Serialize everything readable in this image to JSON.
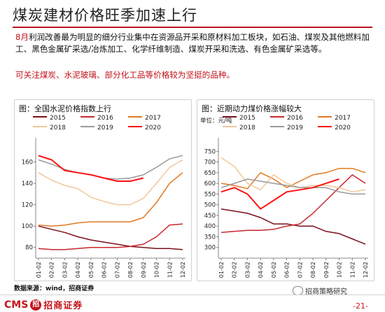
{
  "page": {
    "title": "煤炭建材价格旺季加速上行",
    "para1_red": "8月",
    "para1_rest": "利润改善最为明显的细分行业集中在资源品开采和原材料加工板块，如石油、煤炭及其他燃料加工、黑色金属矿采选/冶炼加工、化学纤维制造、煤炭开采和洗选、有色金属矿采选等。",
    "para2": "可关注煤炭、水泥玻璃、部分化工品等价格较为坚挺的品种。",
    "source": "数据来源：wind，招商证券",
    "logo_latin": "CMS",
    "logo_mark": "招",
    "logo_cn": "招商证券",
    "wechat": "招商策略研究",
    "page_number": "-21-"
  },
  "colors": {
    "2015": "#7a0f1a",
    "2016": "#c8262d",
    "2017": "#e07a21",
    "2018": "#f0c89a",
    "2019": "#9a9a9a",
    "2020": "#ff1111",
    "accent": "#b8191f"
  },
  "chart_data": [
    {
      "type": "line",
      "title": "图：全国水泥价格指数上行",
      "x": [
        "01-02",
        "02-02",
        "03-02",
        "04-02",
        "05-02",
        "06-02",
        "07-02",
        "08-02",
        "09-02",
        "10-02",
        "11-02",
        "12-02"
      ],
      "ylim": [
        70,
        180
      ],
      "yticks": [
        80,
        100,
        120,
        140,
        160
      ],
      "legend": "top",
      "series": [
        {
          "name": "2015",
          "color_key": "2015",
          "values": [
            100,
            97,
            94,
            90,
            87,
            85,
            83,
            81,
            80,
            79,
            79,
            78
          ]
        },
        {
          "name": "2016",
          "color_key": "2016",
          "values": [
            79,
            78,
            78,
            79,
            80,
            80,
            80,
            81,
            83,
            90,
            101,
            102
          ]
        },
        {
          "name": "2017",
          "color_key": "2017",
          "values": [
            101,
            100,
            101,
            103,
            104,
            104,
            104,
            104,
            108,
            122,
            140,
            150
          ]
        },
        {
          "name": "2018",
          "color_key": "2018",
          "values": [
            150,
            143,
            138,
            135,
            127,
            123,
            120,
            120,
            126,
            140,
            155,
            162
          ]
        },
        {
          "name": "2019",
          "color_key": "2019",
          "values": [
            162,
            158,
            153,
            150,
            148,
            145,
            144,
            145,
            148,
            155,
            163,
            166
          ]
        },
        {
          "name": "2020",
          "color_key": "2020",
          "values": [
            166,
            162,
            152,
            150,
            148,
            145,
            142,
            142,
            145,
            null,
            null,
            null
          ]
        }
      ]
    },
    {
      "type": "line",
      "title": "图：近期动力煤价格涨幅较大",
      "ylabel": "单位：元/吨",
      "x": [
        "01-02",
        "02-02",
        "03-02",
        "04-02",
        "05-02",
        "06-02",
        "07-02",
        "08-02",
        "09-02",
        "10-02",
        "11-02",
        "12-02"
      ],
      "ylim": [
        250,
        800
      ],
      "yticks": [
        300,
        350,
        400,
        450,
        500,
        550,
        600,
        650,
        700,
        750
      ],
      "legend": "top",
      "series": [
        {
          "name": "2015",
          "color_key": "2015",
          "values": [
            480,
            470,
            460,
            440,
            410,
            410,
            400,
            400,
            375,
            365,
            340,
            315
          ]
        },
        {
          "name": "2016",
          "color_key": "2016",
          "values": [
            370,
            375,
            380,
            380,
            385,
            400,
            410,
            460,
            520,
            580,
            640,
            600
          ]
        },
        {
          "name": "2017",
          "color_key": "2017",
          "values": [
            600,
            590,
            575,
            650,
            620,
            580,
            610,
            640,
            650,
            670,
            670,
            650
          ]
        },
        {
          "name": "2018",
          "color_key": "2018",
          "values": [
            720,
            680,
            600,
            570,
            640,
            600,
            580,
            590,
            590,
            580,
            560,
            570
          ]
        },
        {
          "name": "2019",
          "color_key": "2019",
          "values": [
            580,
            600,
            620,
            610,
            600,
            590,
            580,
            580,
            580,
            560,
            550,
            550
          ]
        },
        {
          "name": "2020",
          "color_key": "2020",
          "values": [
            560,
            580,
            550,
            480,
            520,
            560,
            570,
            580,
            600,
            620,
            null,
            null
          ]
        }
      ]
    }
  ]
}
